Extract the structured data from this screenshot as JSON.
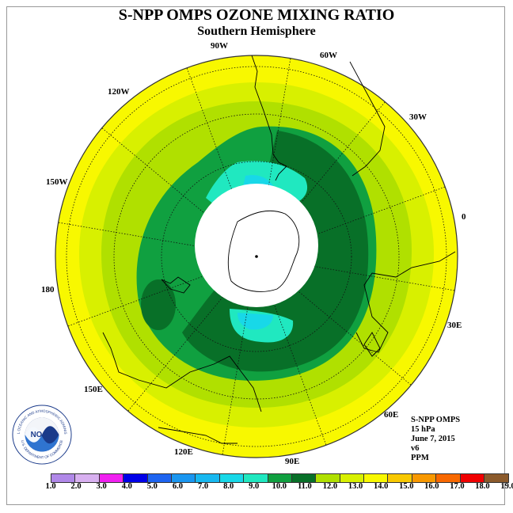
{
  "title": "S-NPP OMPS OZONE MIXING RATIO",
  "subtitle": "Southern Hemisphere",
  "lon_labels": [
    "90W",
    "60W",
    "30W",
    "0",
    "30E",
    "60E",
    "90E",
    "120E",
    "150E",
    "180",
    "150W",
    "120W"
  ],
  "meta": {
    "instrument": "S-NPP OMPS",
    "level": "15 hPa",
    "date": "June 7, 2015",
    "version": "v6",
    "units": "PPM"
  },
  "logo": {
    "text": "NOAA",
    "ring_text": "NATIONAL OCEANIC AND ATMOSPHERIC ADMINISTRATION",
    "dept_text": "U.S. DEPARTMENT OF COMMERCE"
  },
  "colorbar": {
    "labels": [
      "1.0",
      "2.0",
      "3.0",
      "4.0",
      "5.0",
      "6.0",
      "7.0",
      "8.0",
      "9.0",
      "10.0",
      "11.0",
      "12.0",
      "13.0",
      "14.0",
      "15.0",
      "16.0",
      "17.0",
      "18.0",
      "19.0"
    ],
    "colors": [
      "#b088e8",
      "#d8b0f0",
      "#f020f0",
      "#0000e8",
      "#1e64f0",
      "#1a96f0",
      "#18b8f0",
      "#18d8e8",
      "#20e8c0",
      "#10a040",
      "#087028",
      "#b0e000",
      "#d8f000",
      "#f8f800",
      "#f8c800",
      "#f89800",
      "#f86800",
      "#f00000",
      "#8b5a2b"
    ],
    "ticks_fraction": [
      0,
      0.0556,
      0.1111,
      0.1667,
      0.2222,
      0.2778,
      0.3333,
      0.3889,
      0.4444,
      0.5,
      0.5556,
      0.6111,
      0.6667,
      0.7222,
      0.7778,
      0.8333,
      0.8889,
      0.9444,
      1
    ]
  },
  "icons": {
    "logo": "noaa-logo"
  }
}
